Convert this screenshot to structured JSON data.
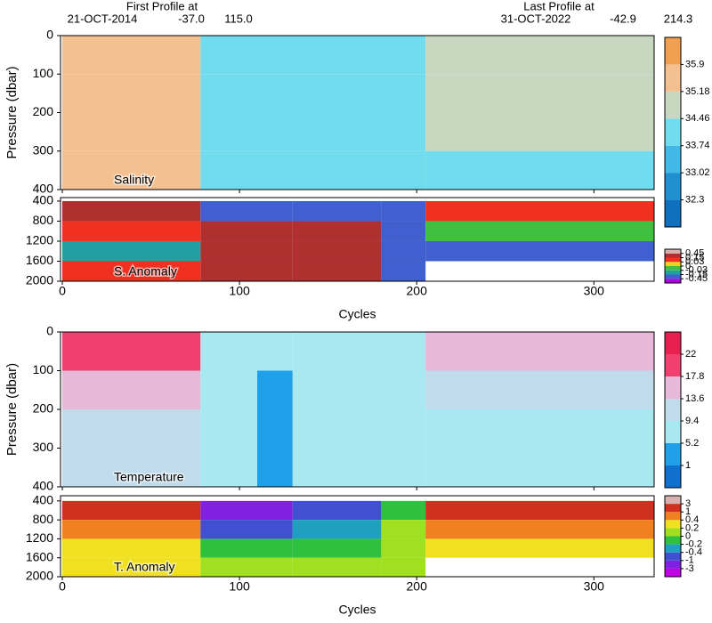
{
  "header": {
    "first_title": "First Profile at",
    "first_date": "21-OCT-2014",
    "first_lat": "-37.0",
    "first_lon": "115.0",
    "last_title": "Last Profile at",
    "last_date": "31-OCT-2022",
    "last_lat": "-42.9",
    "last_lon": "214.3"
  },
  "chart_data": [
    {
      "type": "heatmap",
      "label": "Salinity",
      "ylabel": "Pressure (dbar)",
      "xlim": [
        -1,
        334
      ],
      "xticks": [
        0,
        100,
        200,
        300
      ],
      "ylim": [
        400,
        0
      ],
      "yticks": [
        0,
        100,
        200,
        300,
        400
      ],
      "x_edges": [
        0,
        78,
        205,
        334
      ],
      "y_edges": [
        0,
        100,
        200,
        300,
        400
      ],
      "values": [
        [
          35.5,
          34.0,
          34.6
        ],
        [
          35.5,
          34.0,
          34.6
        ],
        [
          35.5,
          34.0,
          34.6
        ],
        [
          35.5,
          34.0,
          34.0
        ]
      ],
      "colorbar": {
        "ticks": [
          32.3,
          33.02,
          33.74,
          34.46,
          35.18,
          35.9
        ],
        "colors": [
          "#1070c0",
          "#1e90d0",
          "#40b8e8",
          "#70dcee",
          "#c8d8c0",
          "#f5c090",
          "#f0a050"
        ]
      }
    },
    {
      "type": "heatmap",
      "label": "S. Anomaly",
      "xlabel": "Cycles",
      "xlim": [
        -1,
        334
      ],
      "xticks": [
        0,
        100,
        200,
        300
      ],
      "ylim": [
        2000,
        330
      ],
      "yticks": [
        400,
        800,
        1200,
        1600,
        2000
      ],
      "x_edges": [
        0,
        78,
        130,
        180,
        205,
        334
      ],
      "y_edges": [
        400,
        800,
        1200,
        1600,
        2000
      ],
      "values": [
        [
          0.3,
          -0.2,
          -0.2,
          -0.2,
          0.05
        ],
        [
          0.1,
          0.2,
          0.2,
          -0.2,
          -0.02
        ],
        [
          -0.1,
          0.2,
          0.2,
          -0.2,
          -0.2
        ],
        [
          0.05,
          0.2,
          0.2,
          -0.2,
          null
        ]
      ],
      "colorbar": {
        "ticks": [
          -0.45,
          -0.15,
          -0.03,
          0,
          0.03,
          0.15,
          0.45
        ],
        "colors": [
          "#b000e0",
          "#4060d0",
          "#20a0a0",
          "#40c040",
          "#f0d020",
          "#f03020",
          "#b03030",
          "#d8b0b0"
        ]
      }
    },
    {
      "type": "heatmap",
      "label": "Temperature",
      "ylabel": "Pressure (dbar)",
      "xlim": [
        -1,
        334
      ],
      "xticks": [
        0,
        100,
        200,
        300
      ],
      "ylim": [
        400,
        0
      ],
      "yticks": [
        0,
        100,
        200,
        300,
        400
      ],
      "x_edges": [
        0,
        78,
        110,
        130,
        205,
        334
      ],
      "y_edges": [
        0,
        100,
        200,
        300,
        400
      ],
      "values": [
        [
          18,
          8,
          6,
          8,
          14
        ],
        [
          15,
          8,
          5,
          8,
          10
        ],
        [
          12,
          7,
          4,
          7,
          9
        ],
        [
          10,
          7,
          4,
          7,
          9
        ]
      ],
      "colorbar": {
        "ticks": [
          1,
          5.2,
          9.4,
          13.6,
          17.8,
          22
        ],
        "colors": [
          "#1070d0",
          "#20a0e8",
          "#a8e8f0",
          "#c0dcec",
          "#e8b8d8",
          "#f04070",
          "#e82050"
        ]
      }
    },
    {
      "type": "heatmap",
      "label": "T. Anomaly",
      "xlabel": "Cycles",
      "xlim": [
        -1,
        334
      ],
      "xticks": [
        0,
        100,
        200,
        300
      ],
      "ylim": [
        2000,
        290
      ],
      "yticks": [
        400,
        800,
        1200,
        1600,
        2000
      ],
      "x_edges": [
        0,
        78,
        130,
        180,
        205,
        334
      ],
      "y_edges": [
        400,
        800,
        1200,
        1600,
        2000
      ],
      "values": [
        [
          2,
          -2,
          -0.6,
          -0.1,
          2
        ],
        [
          0.5,
          -0.6,
          -0.3,
          0.1,
          0.6
        ],
        [
          0.3,
          -0.1,
          -0.1,
          0.1,
          0.3
        ],
        [
          0.25,
          0.05,
          0.1,
          0.1,
          null
        ]
      ],
      "colorbar": {
        "ticks": [
          -3,
          -1,
          -0.4,
          -0.2,
          0,
          0.2,
          0.4,
          1,
          3
        ],
        "colors": [
          "#c000e0",
          "#8020e0",
          "#4050d0",
          "#20a0c0",
          "#30c040",
          "#a0e020",
          "#f0e020",
          "#f08020",
          "#d03020",
          "#d8b0b0"
        ]
      }
    }
  ]
}
